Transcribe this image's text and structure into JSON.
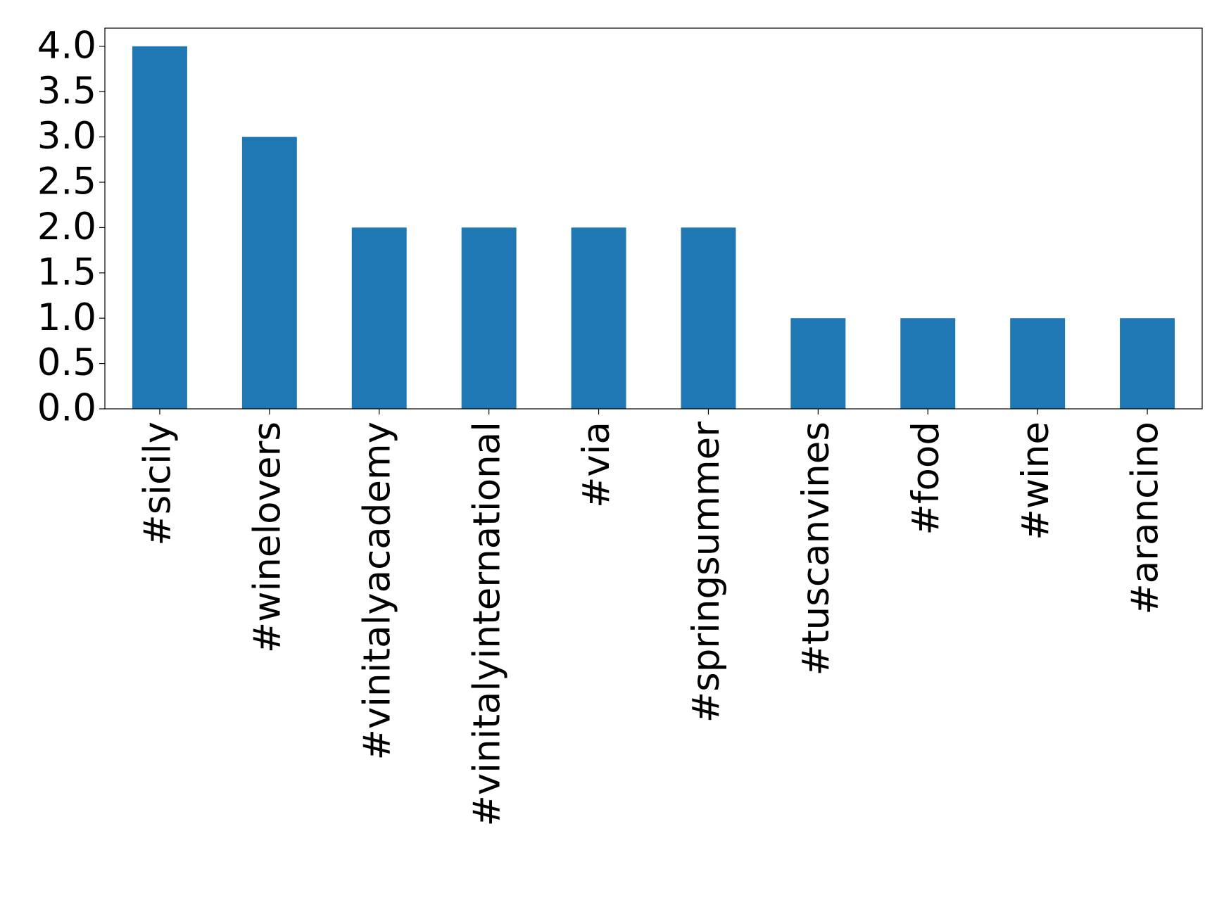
{
  "chart_data": {
    "type": "bar",
    "categories": [
      "#sicily",
      "#winelovers",
      "#vinitalyacademy",
      "#vinitalyinternational",
      "#via",
      "#springsummer",
      "#tuscanvines",
      "#food",
      "#wine",
      "#arancino"
    ],
    "values": [
      4,
      3,
      2,
      2,
      2,
      2,
      1,
      1,
      1,
      1
    ],
    "color": "#1f77b4",
    "ylim": [
      0,
      4.2
    ],
    "yticks": [
      {
        "value": 0,
        "label": "0.0"
      },
      {
        "value": 0.5,
        "label": "0.5"
      },
      {
        "value": 1,
        "label": "1.0"
      },
      {
        "value": 1.5,
        "label": "1.5"
      },
      {
        "value": 2,
        "label": "2.0"
      },
      {
        "value": 2.5,
        "label": "2.5"
      },
      {
        "value": 3,
        "label": "3.0"
      },
      {
        "value": 3.5,
        "label": "3.5"
      },
      {
        "value": 4,
        "label": "4.0"
      }
    ],
    "grid": false
  }
}
